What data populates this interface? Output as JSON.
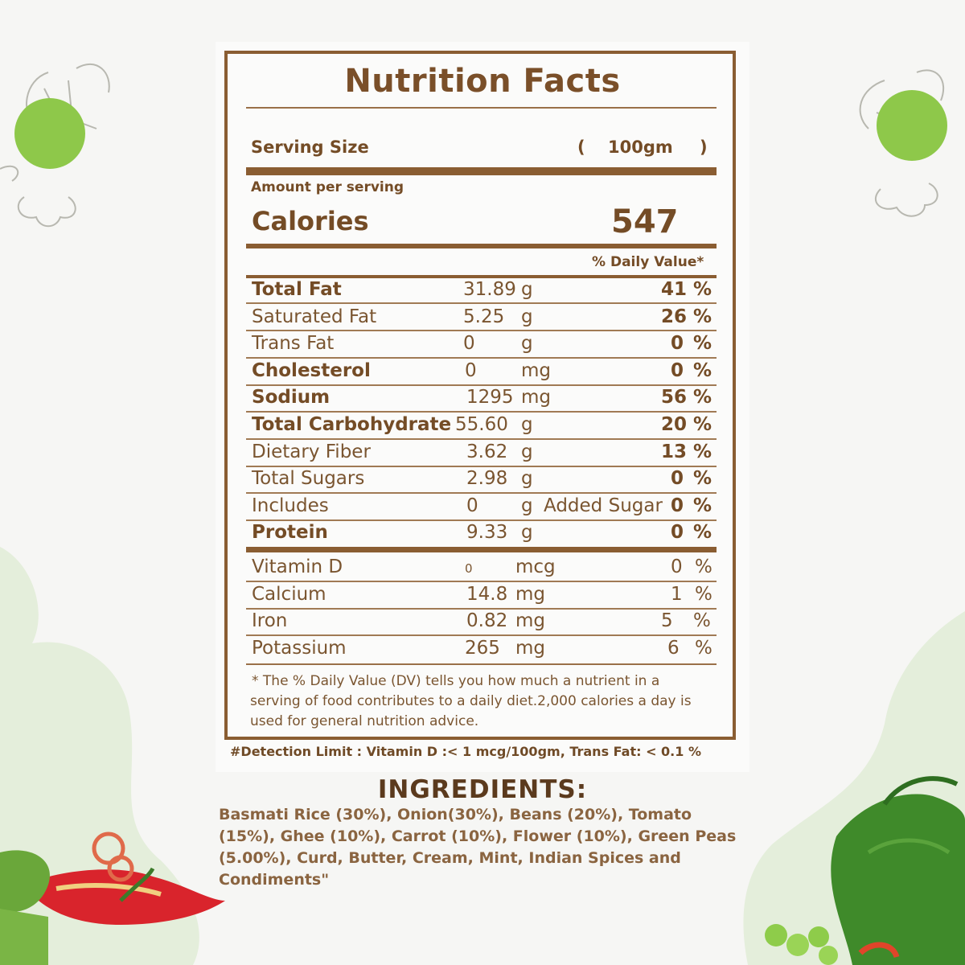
{
  "title": "Nutrition Facts",
  "serving": {
    "label": "Serving Size",
    "open": "(",
    "value": "100gm",
    "close": ")"
  },
  "amount_per_serving": "Amount per serving",
  "calories": {
    "label": "Calories",
    "value": "547"
  },
  "dv_header": "% Daily Value*",
  "nutrients": [
    {
      "name": "Total Fat",
      "amount": "31.89",
      "unit": "g",
      "dv": "41",
      "pct": "%",
      "bold": true
    },
    {
      "name": "Saturated Fat",
      "amount": "5.25",
      "unit": "g",
      "dv": "26",
      "pct": "%",
      "bold": false
    },
    {
      "name": "Trans Fat",
      "amount": "0",
      "unit": "g",
      "dv": "0",
      "pct": "%",
      "bold": false
    },
    {
      "name": "Cholesterol",
      "amount": "0",
      "unit": "mg",
      "dv": "0",
      "pct": "%",
      "bold": true
    },
    {
      "name": "Sodium",
      "amount": "1295",
      "unit": "mg",
      "dv": "56",
      "pct": "%",
      "bold": true
    },
    {
      "name": "Total Carbohydrate",
      "amount": "55.60",
      "unit": "g",
      "dv": "20",
      "pct": "%",
      "bold": true
    },
    {
      "name": "Dietary Fiber",
      "amount": "3.62",
      "unit": "g",
      "dv": "13",
      "pct": "%",
      "bold": false
    },
    {
      "name": "Total Sugars",
      "amount": "2.98",
      "unit": "g",
      "dv": "0",
      "pct": "%",
      "bold": false
    },
    {
      "name": "Includes",
      "amount": "0",
      "unit": "g",
      "extra": "Added Sugar",
      "dv": "0",
      "pct": "%",
      "bold": false
    },
    {
      "name": "Protein",
      "amount": "9.33",
      "unit": "g",
      "dv": "0",
      "pct": "%",
      "bold": true
    }
  ],
  "vitamins": [
    {
      "name": "Vitamin D",
      "amount": "0",
      "unit": "mcg",
      "dv": "0",
      "pct": "%"
    },
    {
      "name": "Calcium",
      "amount": "14.8",
      "unit": "mg",
      "dv": "1",
      "pct": "%"
    },
    {
      "name": "Iron",
      "amount": "0.82",
      "unit": "mg",
      "dv": "5",
      "pct": "%"
    },
    {
      "name": "Potassium",
      "amount": "265",
      "unit": "mg",
      "dv": "6",
      "pct": "%"
    }
  ],
  "footnote": [
    "* The % Daily Value (DV) tells you how much a nutrient in a",
    "serving of food contributes to a daily diet.2,000 calories a day is",
    "used for general nutrition advice."
  ],
  "detection_limit": "#Detection Limit : Vitamin D :< 1 mcg/100gm, Trans Fat: < 0.1 %",
  "ingredients_title": "INGREDIENTS:",
  "ingredients": "Basmati Rice (30%), Onion(30%), Beans (20%), Tomato (15%), Ghee (10%), Carrot (10%), Flower (10%), Green Peas (5.00%), Curd, Butter, Cream, Mint, Indian Spices and Condiments\"",
  "colors": {
    "label_brown": "#8a5d32",
    "accent_green": "#8ec84a",
    "background": "#f6f6f4"
  }
}
